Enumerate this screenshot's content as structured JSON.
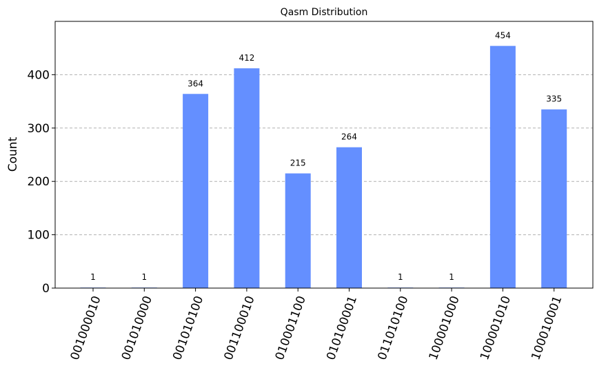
{
  "chart_data": {
    "type": "bar",
    "title": "Qasm Distribution",
    "xlabel": "",
    "ylabel": "Count",
    "categories": [
      "001000010",
      "001010000",
      "001010100",
      "001100010",
      "010001100",
      "010100001",
      "011010100",
      "100001000",
      "100001010",
      "100010001"
    ],
    "values": [
      1,
      1,
      364,
      412,
      215,
      264,
      1,
      1,
      454,
      335
    ],
    "data_labels": [
      "1",
      "1",
      "364",
      "412",
      "215",
      "264",
      "1",
      "1",
      "454",
      "335"
    ],
    "ylim": [
      0,
      500
    ],
    "yticks": [
      0,
      100,
      200,
      300,
      400
    ],
    "ytick_labels": [
      "0",
      "100",
      "200",
      "300",
      "400"
    ],
    "grid": "y-dashed",
    "bar_color": "#648fff",
    "legend": "none"
  }
}
